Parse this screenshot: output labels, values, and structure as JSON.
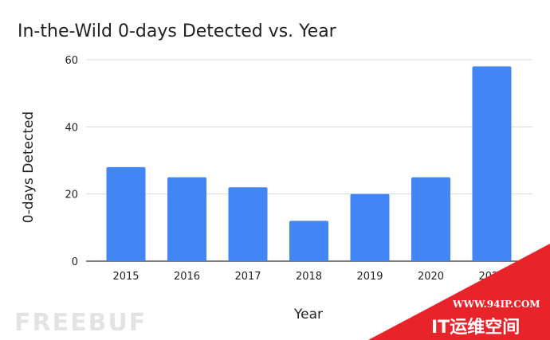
{
  "chart_data": {
    "type": "bar",
    "title": "In-the-Wild 0-days Detected vs. Year",
    "xlabel": "Year",
    "ylabel": "0-days Detected",
    "categories": [
      "2015",
      "2016",
      "2017",
      "2018",
      "2019",
      "2020",
      "2021"
    ],
    "values": [
      28,
      25,
      22,
      12,
      20,
      25,
      58
    ],
    "ylim": [
      0,
      60
    ],
    "yticks": [
      0,
      20,
      40,
      60
    ],
    "grid": true,
    "legend": "none"
  },
  "colors": {
    "bar": "#4285f4",
    "badge": "#e8232a"
  },
  "watermark": {
    "left_text": "FREEBUF",
    "badge_url": "WWW.94IP.COM",
    "badge_title": "IT运维空间"
  }
}
